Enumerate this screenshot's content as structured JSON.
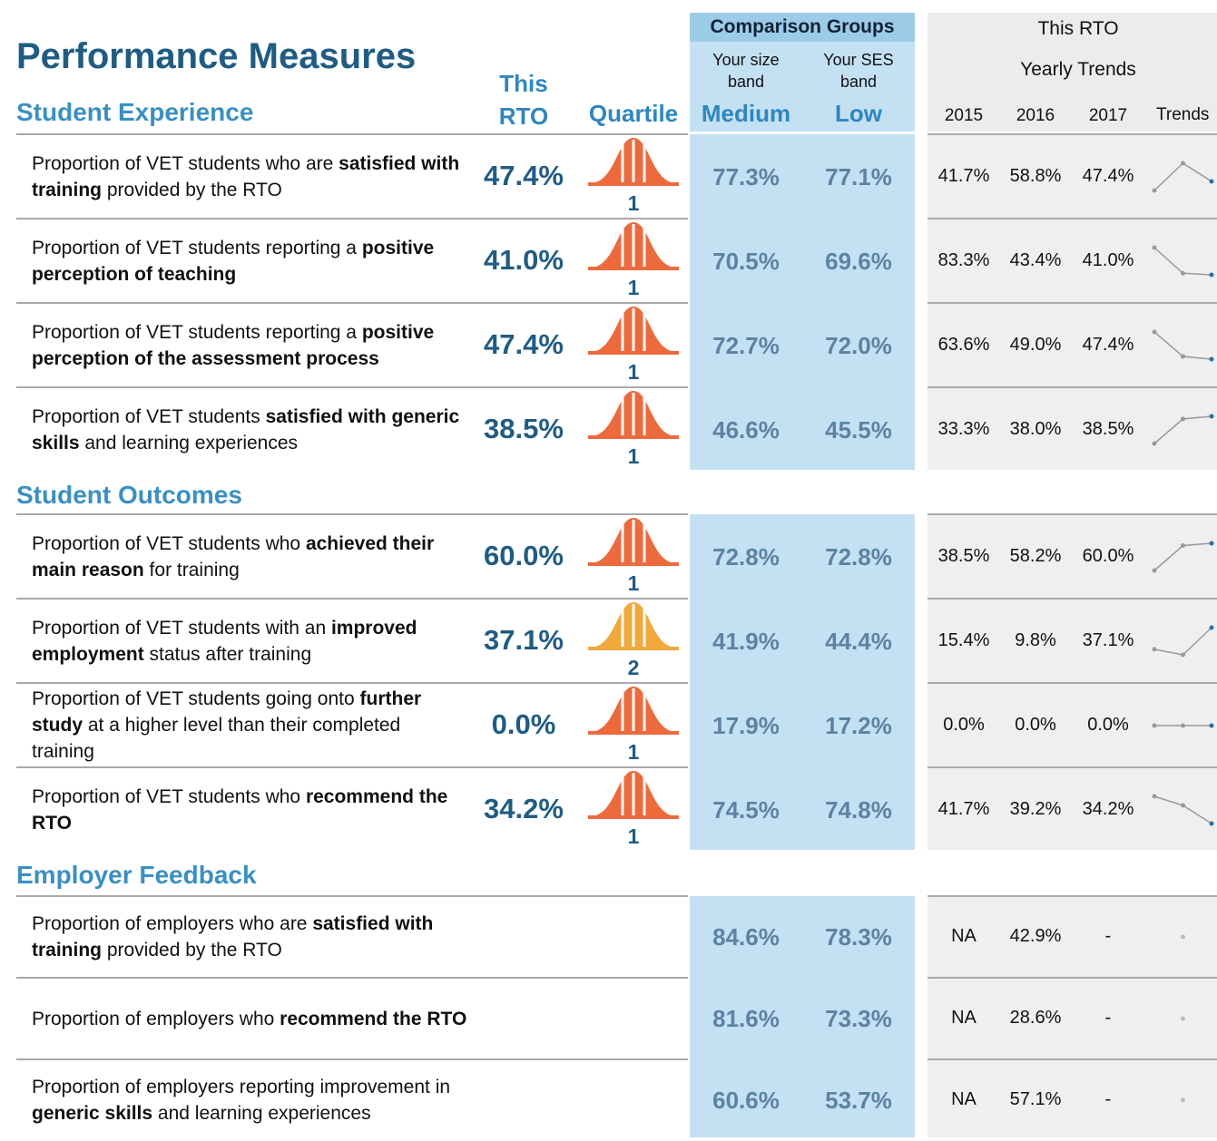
{
  "header": {
    "title": "Performance Measures",
    "this_rto": "This RTO",
    "quartile": "Quartile"
  },
  "comparison": {
    "title": "Comparison Groups",
    "size_label": "Your size band",
    "ses_label": "Your SES band",
    "size": "Medium",
    "ses": "Low"
  },
  "trends": {
    "title": "This RTO",
    "subtitle": "Yearly Trends",
    "years": [
      "2015",
      "2016",
      "2017"
    ],
    "label": "Trends"
  },
  "sections": [
    {
      "title": "Student Experience",
      "rows": [
        {
          "description": [
            {
              "text": "Proportion of VET students who are "
            },
            {
              "text": "satisfied with training",
              "bold": true
            },
            {
              "text": " provided by the RTO"
            }
          ],
          "this_rto": "47.4%",
          "quartile": 1,
          "medium": "77.3%",
          "low": "77.1%",
          "yearly": [
            "41.7%",
            "58.8%",
            "47.4%"
          ]
        },
        {
          "description": [
            {
              "text": "Proportion of VET students reporting a "
            },
            {
              "text": "positive perception of teaching",
              "bold": true
            }
          ],
          "this_rto": "41.0%",
          "quartile": 1,
          "medium": "70.5%",
          "low": "69.6%",
          "yearly": [
            "83.3%",
            "43.4%",
            "41.0%"
          ]
        },
        {
          "description": [
            {
              "text": "Proportion of VET students reporting a "
            },
            {
              "text": "positive perception of the assessment process",
              "bold": true
            }
          ],
          "this_rto": "47.4%",
          "quartile": 1,
          "medium": "72.7%",
          "low": "72.0%",
          "yearly": [
            "63.6%",
            "49.0%",
            "47.4%"
          ]
        },
        {
          "description": [
            {
              "text": "Proportion of VET students "
            },
            {
              "text": "satisfied with generic skills",
              "bold": true
            },
            {
              "text": " and learning experiences"
            }
          ],
          "this_rto": "38.5%",
          "quartile": 1,
          "medium": "46.6%",
          "low": "45.5%",
          "yearly": [
            "33.3%",
            "38.0%",
            "38.5%"
          ]
        }
      ]
    },
    {
      "title": "Student Outcomes",
      "rows": [
        {
          "description": [
            {
              "text": "Proportion of VET students who "
            },
            {
              "text": "achieved their main reason",
              "bold": true
            },
            {
              "text": " for training"
            }
          ],
          "this_rto": "60.0%",
          "quartile": 1,
          "medium": "72.8%",
          "low": "72.8%",
          "yearly": [
            "38.5%",
            "58.2%",
            "60.0%"
          ]
        },
        {
          "description": [
            {
              "text": "Proportion of VET students with an "
            },
            {
              "text": "improved employment",
              "bold": true
            },
            {
              "text": " status after training"
            }
          ],
          "this_rto": "37.1%",
          "quartile": 2,
          "medium": "41.9%",
          "low": "44.4%",
          "yearly": [
            "15.4%",
            "9.8%",
            "37.1%"
          ]
        },
        {
          "description": [
            {
              "text": "Proportion of VET students going onto "
            },
            {
              "text": "further study",
              "bold": true
            },
            {
              "text": " at a higher level than their completed training"
            }
          ],
          "this_rto": "0.0%",
          "quartile": 1,
          "medium": "17.9%",
          "low": "17.2%",
          "yearly": [
            "0.0%",
            "0.0%",
            "0.0%"
          ]
        },
        {
          "description": [
            {
              "text": "Proportion of VET students who "
            },
            {
              "text": "recommend the RTO",
              "bold": true
            }
          ],
          "this_rto": "34.2%",
          "quartile": 1,
          "medium": "74.5%",
          "low": "74.8%",
          "yearly": [
            "41.7%",
            "39.2%",
            "34.2%"
          ]
        }
      ]
    },
    {
      "title": "Employer Feedback",
      "rows": [
        {
          "description": [
            {
              "text": "Proportion of employers who are "
            },
            {
              "text": "satisfied with training",
              "bold": true
            },
            {
              "text": " provided by the RTO"
            }
          ],
          "medium": "84.6%",
          "low": "78.3%",
          "yearly": [
            "NA",
            "42.9%",
            "-"
          ]
        },
        {
          "description": [
            {
              "text": "Proportion of employers who "
            },
            {
              "text": "recommend the RTO",
              "bold": true
            }
          ],
          "medium": "81.6%",
          "low": "73.3%",
          "yearly": [
            "NA",
            "28.6%",
            "-"
          ]
        },
        {
          "description": [
            {
              "text": "Proportion of employers reporting improvement in "
            },
            {
              "text": "generic skills",
              "bold": true
            },
            {
              "text": " and learning experiences"
            }
          ],
          "medium": "60.6%",
          "low": "53.7%",
          "yearly": [
            "NA",
            "57.1%",
            "-"
          ]
        }
      ]
    }
  ]
}
